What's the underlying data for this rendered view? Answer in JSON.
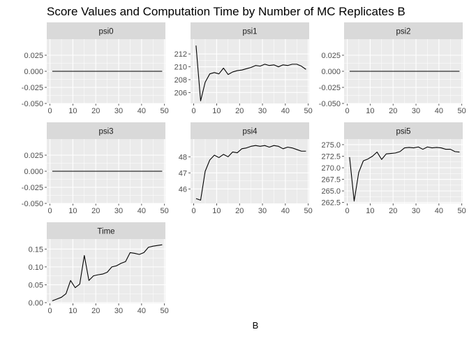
{
  "figure": {
    "title": "Score Values and Computation Time by Number of MC Replicates B",
    "xlabel": "B"
  },
  "colors": {
    "panel_bg": "#EBEBEB",
    "strip_bg": "#D9D9D9",
    "grid_major": "#FFFFFF",
    "line": "#000000",
    "axis_text": "#4D4D4D",
    "strip_text": "#1A1A1A"
  },
  "chart_data": {
    "type": "line",
    "layout": "facet_wrap",
    "ncol": 3,
    "grid": true,
    "x_ticks": [
      0,
      10,
      20,
      30,
      40,
      50
    ],
    "x_labels": [
      "0",
      "10",
      "20",
      "30",
      "40",
      "50"
    ],
    "xlim": [
      -1.4,
      50.4
    ],
    "x": [
      1,
      3,
      5,
      7,
      9,
      11,
      13,
      15,
      17,
      19,
      21,
      23,
      25,
      27,
      29,
      31,
      33,
      35,
      37,
      39,
      41,
      43,
      45,
      47,
      49
    ],
    "panels": [
      {
        "name": "psi0",
        "ylim": [
          -0.05,
          0.05
        ],
        "y_ticks": [
          -0.05,
          -0.025,
          0,
          0.025
        ],
        "y_labels": [
          "-0.050",
          "-0.025",
          "0.000",
          "0.025"
        ],
        "values": [
          0,
          0,
          0,
          0,
          0,
          0,
          0,
          0,
          0,
          0,
          0,
          0,
          0,
          0,
          0,
          0,
          0,
          0,
          0,
          0,
          0,
          0,
          0,
          0,
          0
        ]
      },
      {
        "name": "psi1",
        "ylim": [
          204.3,
          214.3
        ],
        "y_ticks": [
          206,
          208,
          210,
          212
        ],
        "y_labels": [
          "206",
          "208",
          "210",
          "212"
        ],
        "values": [
          213.3,
          204.7,
          207.6,
          208.9,
          209.1,
          208.9,
          209.8,
          208.8,
          209.2,
          209.4,
          209.5,
          209.7,
          209.9,
          210.2,
          210.1,
          210.4,
          210.2,
          210.3,
          210.0,
          210.3,
          210.2,
          210.4,
          210.4,
          210.1,
          209.6
        ]
      },
      {
        "name": "psi2",
        "ylim": [
          -0.05,
          0.05
        ],
        "y_ticks": [
          -0.05,
          -0.025,
          0,
          0.025
        ],
        "y_labels": [
          "-0.050",
          "-0.025",
          "0.000",
          "0.025"
        ],
        "values": [
          0,
          0,
          0,
          0,
          0,
          0,
          0,
          0,
          0,
          0,
          0,
          0,
          0,
          0,
          0,
          0,
          0,
          0,
          0,
          0,
          0,
          0,
          0,
          0,
          0
        ]
      },
      {
        "name": "psi3",
        "ylim": [
          -0.05,
          0.05
        ],
        "y_ticks": [
          -0.05,
          -0.025,
          0,
          0.025
        ],
        "y_labels": [
          "-0.050",
          "-0.025",
          "0.000",
          "0.025"
        ],
        "values": [
          0,
          0,
          0,
          0,
          0,
          0,
          0,
          0,
          0,
          0,
          0,
          0,
          0,
          0,
          0,
          0,
          0,
          0,
          0,
          0,
          0,
          0,
          0,
          0,
          0
        ]
      },
      {
        "name": "psi4",
        "ylim": [
          45.1,
          49.1
        ],
        "y_ticks": [
          46,
          47,
          48
        ],
        "y_labels": [
          "46",
          "47",
          "48"
        ],
        "values": [
          45.4,
          45.3,
          47.1,
          47.8,
          48.1,
          47.95,
          48.15,
          48.0,
          48.3,
          48.25,
          48.5,
          48.55,
          48.65,
          48.7,
          48.65,
          48.7,
          48.6,
          48.7,
          48.65,
          48.5,
          48.6,
          48.55,
          48.45,
          48.35,
          48.35
        ]
      },
      {
        "name": "psi5",
        "ylim": [
          262.3,
          276.2
        ],
        "y_ticks": [
          262.5,
          265,
          267.5,
          270,
          272.5,
          275
        ],
        "y_labels": [
          "262.5",
          "265.0",
          "267.5",
          "270.0",
          "272.5",
          "275.0"
        ],
        "values": [
          272.3,
          262.8,
          269.0,
          271.5,
          271.9,
          272.5,
          273.4,
          271.8,
          273.0,
          273.1,
          273.2,
          273.5,
          274.3,
          274.4,
          274.3,
          274.5,
          274.0,
          274.5,
          274.3,
          274.4,
          274.3,
          274.0,
          274.0,
          273.5,
          273.4
        ]
      },
      {
        "name": "Time",
        "ylim": [
          -0.002,
          0.178
        ],
        "y_ticks": [
          0,
          0.05,
          0.1,
          0.15
        ],
        "y_labels": [
          "0.00",
          "0.05",
          "0.10",
          "0.15"
        ],
        "values": [
          0.005,
          0.01,
          0.015,
          0.025,
          0.062,
          0.042,
          0.052,
          0.132,
          0.062,
          0.075,
          0.078,
          0.08,
          0.085,
          0.1,
          0.103,
          0.11,
          0.115,
          0.14,
          0.138,
          0.135,
          0.14,
          0.155,
          0.158,
          0.16,
          0.162
        ]
      }
    ]
  }
}
